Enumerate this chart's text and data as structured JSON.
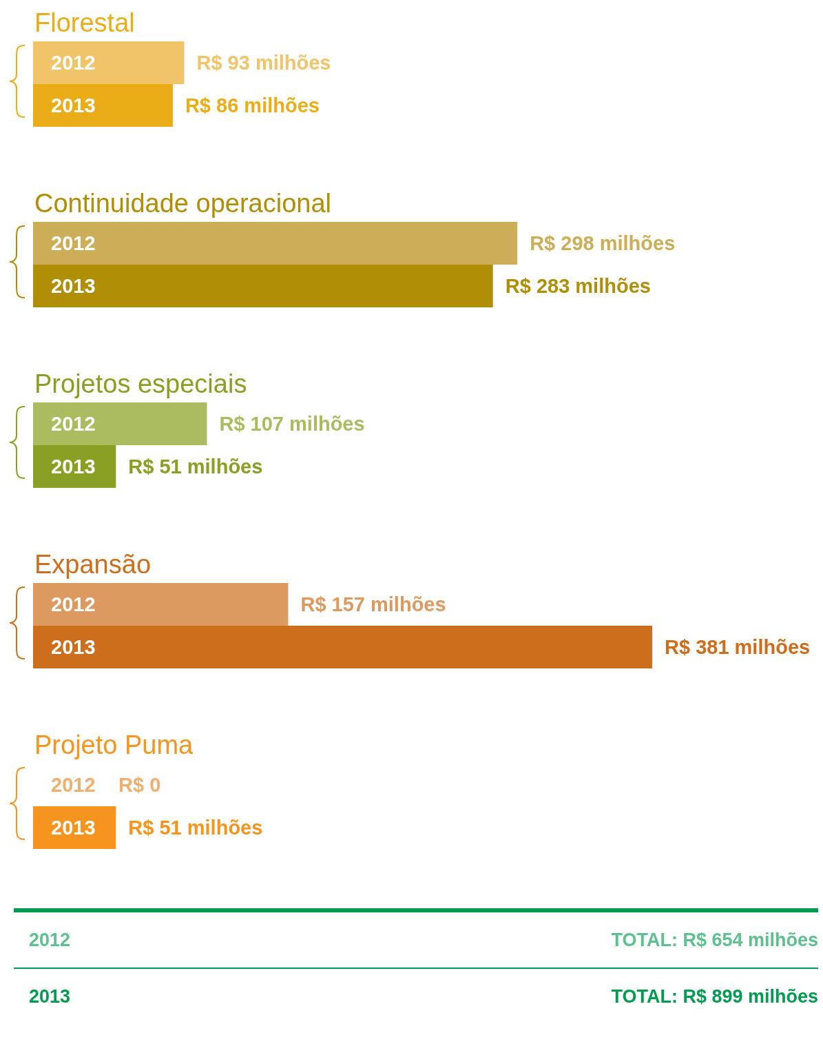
{
  "chart_data": [
    {
      "type": "bar",
      "orientation": "horizontal",
      "title": "Florestal",
      "categories": [
        "2012",
        "2013"
      ],
      "values": [
        93,
        86
      ],
      "colors": [
        "#f2c46a",
        "#ebad17"
      ],
      "value_labels": [
        "R$ 93 milhões",
        "R$ 86 milhões"
      ],
      "tick_labels": "y"
    },
    {
      "type": "bar",
      "orientation": "horizontal",
      "title": "Continuidade operacional",
      "categories": [
        "2012",
        "2013"
      ],
      "values": [
        298,
        283
      ],
      "colors": [
        "#cbae57",
        "#b08f06"
      ],
      "value_labels": [
        "R$ 298 milhões",
        "R$ 283 milhões"
      ],
      "tick_labels": "y"
    },
    {
      "type": "bar",
      "orientation": "horizontal",
      "title": "Projetos especiais",
      "categories": [
        "2012",
        "2013"
      ],
      "values": [
        107,
        51
      ],
      "colors": [
        "#aabb60",
        "#89a024"
      ],
      "value_labels": [
        "R$ 107 milhões",
        "R$ 51 milhões"
      ],
      "tick_labels": "y"
    },
    {
      "type": "bar",
      "orientation": "horizontal",
      "title": "Expansão",
      "categories": [
        "2012",
        "2013"
      ],
      "values": [
        157,
        381
      ],
      "colors": [
        "#dd9a60",
        "#cc6e1b"
      ],
      "value_labels": [
        "R$ 157 milhões",
        "R$ 381 milhões"
      ],
      "tick_labels": "y"
    },
    {
      "type": "bar",
      "orientation": "horizontal",
      "title": "Projeto Puma",
      "categories": [
        "2012",
        "2013"
      ],
      "values": [
        0,
        51
      ],
      "colors": [
        "#eeb070",
        "#f5941f"
      ],
      "value_labels": [
        "R$ 0",
        "R$ 51 milhões"
      ],
      "tick_labels": "y"
    },
    {
      "type": "other",
      "annotations": [
        "2012",
        "TOTAL: R$ 654 milhões",
        "2013",
        "TOTAL: R$ 899 milhões"
      ]
    }
  ]
}
